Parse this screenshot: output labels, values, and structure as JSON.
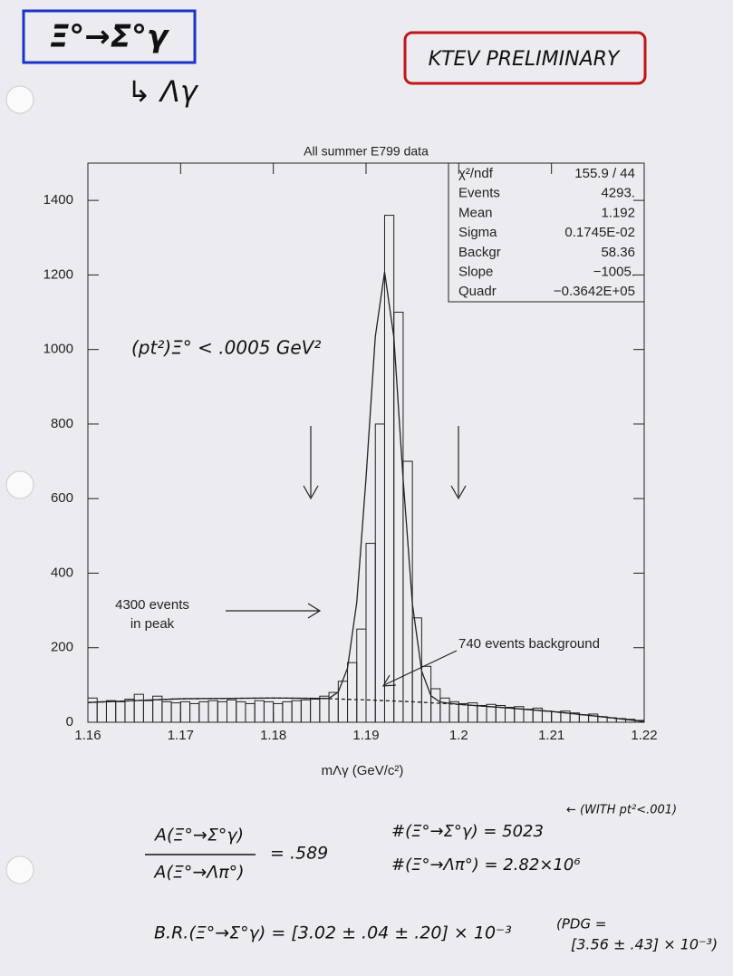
{
  "annotations": {
    "decay": "Ξ°→Σ°γ",
    "subdecay": "↳ Λγ",
    "preliminary": "KTEV PRELIMINARY",
    "ratio_num": "A(Ξ°→Σ°γ)",
    "ratio_den": "A(Ξ°→Λπ°)",
    "ratio_value": "= .589",
    "count_sigma": "#(Ξ°→Σ°γ) = 5023",
    "count_note": "← (WITH pt²<.001)",
    "count_lambda": "#(Ξ°→Λπ°) = 2.82×10⁶",
    "br": "B.R.(Ξ°→Σ°γ) = [3.02 ± .04 ± .20] × 10⁻³",
    "pdg_1": "(PDG =",
    "pdg_2": "[3.56 ± .43] × 10⁻³)"
  },
  "chart_data": {
    "type": "histogram",
    "title": "All summer E799 data",
    "x_label": "mΛγ (GeV/c²)",
    "bins": [
      1.16,
      1.161,
      1.162,
      1.163,
      1.164,
      1.165,
      1.166,
      1.167,
      1.168,
      1.169,
      1.17,
      1.171,
      1.172,
      1.173,
      1.174,
      1.175,
      1.176,
      1.177,
      1.178,
      1.179,
      1.18,
      1.181,
      1.182,
      1.183,
      1.184,
      1.185,
      1.186,
      1.187,
      1.188,
      1.189,
      1.19,
      1.191,
      1.192,
      1.193,
      1.194,
      1.195,
      1.196,
      1.197,
      1.198,
      1.199,
      1.2,
      1.201,
      1.202,
      1.203,
      1.204,
      1.205,
      1.206,
      1.207,
      1.208,
      1.209,
      1.21,
      1.211,
      1.212,
      1.213,
      1.214,
      1.215,
      1.216,
      1.217,
      1.218,
      1.219,
      1.22
    ],
    "values": [
      65,
      55,
      58,
      55,
      62,
      75,
      58,
      70,
      55,
      52,
      55,
      50,
      55,
      58,
      55,
      60,
      55,
      50,
      58,
      55,
      50,
      55,
      58,
      60,
      62,
      70,
      80,
      110,
      160,
      250,
      480,
      800,
      1360,
      1100,
      700,
      280,
      150,
      90,
      65,
      55,
      50,
      52,
      45,
      48,
      45,
      40,
      42,
      35,
      38,
      30,
      28,
      30,
      25,
      20,
      22,
      15,
      12,
      10,
      8,
      5
    ],
    "color": "#222222",
    "fit": {
      "x": [
        1.16,
        1.17,
        1.18,
        1.185,
        1.186,
        1.187,
        1.188,
        1.189,
        1.19,
        1.191,
        1.192,
        1.193,
        1.194,
        1.195,
        1.196,
        1.197,
        1.198,
        1.2,
        1.205,
        1.21,
        1.215,
        1.22
      ],
      "values": [
        53,
        63,
        65,
        64,
        64,
        81,
        145,
        322,
        656,
        1035,
        1208,
        1033,
        652,
        317,
        137,
        71,
        54,
        48,
        39,
        29,
        16,
        2
      ]
    },
    "background": {
      "x": [
        1.16,
        1.17,
        1.18,
        1.185,
        1.19,
        1.195,
        1.2,
        1.205,
        1.21,
        1.215,
        1.22
      ],
      "values": [
        53,
        63,
        65,
        64,
        60,
        55,
        48,
        39,
        29,
        16,
        2
      ]
    },
    "xlim": [
      1.16,
      1.22
    ],
    "xticks": [
      1.16,
      1.17,
      1.18,
      1.19,
      1.2,
      1.21,
      1.22
    ],
    "ylim": [
      0,
      1500
    ],
    "yticks": [
      0,
      200,
      400,
      600,
      800,
      1000,
      1200,
      1400
    ],
    "stats": [
      [
        "χ²/ndf",
        "155.9   /   44"
      ],
      [
        "Events",
        "4293."
      ],
      [
        "Mean",
        "1.192"
      ],
      [
        "Sigma",
        "0.1745E-02"
      ],
      [
        "Backgr",
        "58.36"
      ],
      [
        "Slope",
        "−1005."
      ],
      [
        "Quadr",
        "−0.3642E+05"
      ]
    ],
    "annotations": [
      "(pt²)Ξ° < .0005 GeV²",
      "4300 events",
      "in peak",
      "740 events background"
    ]
  }
}
